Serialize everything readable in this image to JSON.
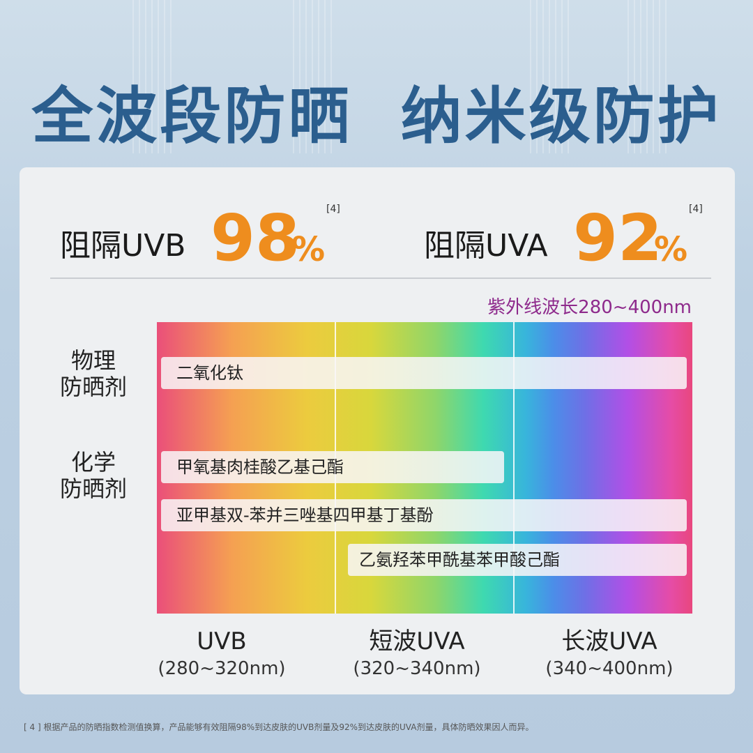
{
  "headline": "全波段防晒  纳米级防护",
  "stats": [
    {
      "label": "阻隔UVB",
      "value": "98",
      "unit": "%",
      "ref": "[4]"
    },
    {
      "label": "阻隔UVA",
      "value": "92",
      "unit": "%",
      "ref": "[4]"
    }
  ],
  "range_title": "紫外线波长280~400nm",
  "groups": [
    {
      "line1": "物理",
      "line2": "防晒剂"
    },
    {
      "line1": "化学",
      "line2": "防晒剂"
    }
  ],
  "ingredients": [
    {
      "name": "二氧化钛",
      "group": "物理防晒剂",
      "coverage": "UVB–长波UVA"
    },
    {
      "name": "甲氧基肉桂酸乙基己酯",
      "group": "化学防晒剂",
      "coverage": "UVB–短波UVA"
    },
    {
      "name": "亚甲基双-苯并三唑基四甲基丁基酚",
      "group": "化学防晒剂",
      "coverage": "UVB–长波UVA"
    },
    {
      "name": "乙氨羟苯甲酰基苯甲酸己酯",
      "group": "化学防晒剂",
      "coverage": "短波UVA–长波UVA"
    }
  ],
  "bands": [
    {
      "name": "UVB",
      "range": "(280~320nm)"
    },
    {
      "name": "短波UVA",
      "range": "(320~340nm)"
    },
    {
      "name": "长波UVA",
      "range": "(340~400nm)"
    }
  ],
  "footnote": "[ 4 ] 根据产品的防晒指数检测值换算，产品能够有效阻隔98%到达皮肤的UVB剂量及92%到达皮肤的UVA剂量，具体防晒效果因人而异。",
  "colors": {
    "headline": "#2b5e8e",
    "accent": "#ee8d1e",
    "range_title": "#8e2a8c"
  }
}
